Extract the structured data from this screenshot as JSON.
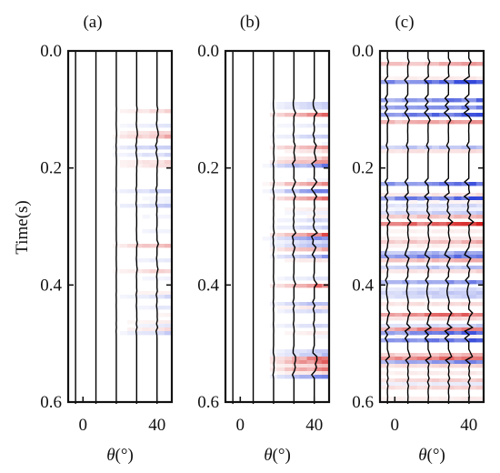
{
  "chart_data": {
    "type": "heatmap",
    "description_type": "seismic angle gathers (wiggle traces over color image)",
    "ylabel": "Time(s)",
    "xlabel": "θ(°)",
    "ylim": [
      0.0,
      0.6
    ],
    "xlim": [
      -8,
      48
    ],
    "y_ticks": [
      0.0,
      0.2,
      0.4,
      0.6
    ],
    "y_tick_labels": [
      "0.0",
      "0.2",
      "0.4",
      "0.6"
    ],
    "x_ticks": [
      0,
      40
    ],
    "x_tick_labels": [
      "0",
      "40"
    ],
    "trace_angles": [
      -4,
      7,
      18,
      29,
      40
    ],
    "colormap": {
      "positive": "#d62020",
      "negative": "#2a40d8",
      "zero": "#ffffff"
    },
    "panels": [
      {
        "label": "(a)",
        "seed": 11,
        "amplitude": 0.35,
        "onset": 0.1,
        "end": 0.5,
        "angle_ramp": true
      },
      {
        "label": "(b)",
        "seed": 29,
        "amplitude": 0.75,
        "onset": 0.09,
        "end": 0.56,
        "angle_ramp": true
      },
      {
        "label": "(c)",
        "seed": 53,
        "amplitude": 1.0,
        "onset": 0.0,
        "end": 0.6,
        "angle_ramp": false
      }
    ]
  }
}
